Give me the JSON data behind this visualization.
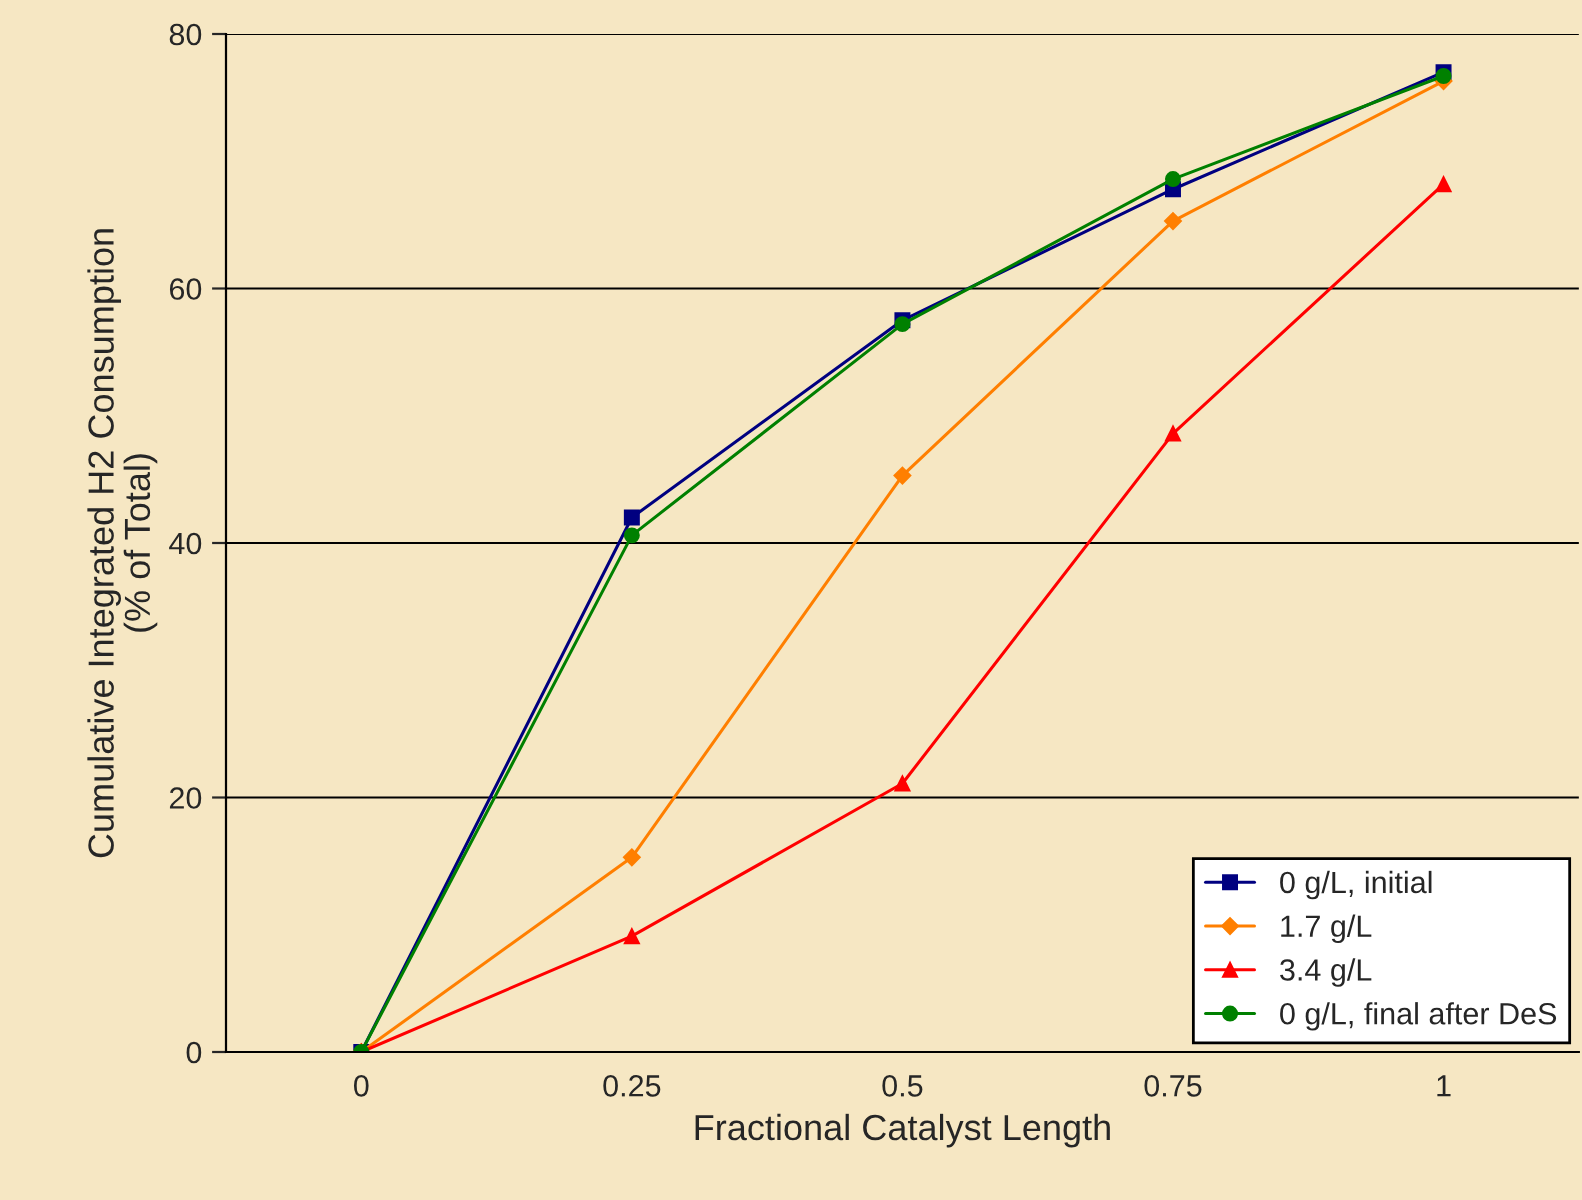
{
  "chart_data": {
    "type": "line",
    "xlabel": "Fractional Catalyst Length",
    "ylabel": "Cumulative Integrated H2 Consumption\n(% of Total)",
    "categories": [
      "0",
      "0.25",
      "0.5",
      "0.75",
      "1"
    ],
    "ylim": [
      0,
      80
    ],
    "yticks": [
      0,
      20,
      40,
      60,
      80
    ],
    "grid": "y",
    "legend": "bottom right",
    "series": [
      {
        "name": "0 g/L, initial",
        "color": "#000080",
        "marker": "square",
        "values": [
          0,
          42.0,
          57.5,
          67.8,
          77.0
        ]
      },
      {
        "name": "1.7 g/L",
        "color": "#ff7f00",
        "marker": "diamond",
        "values": [
          0,
          15.3,
          45.3,
          65.3,
          76.3
        ]
      },
      {
        "name": "3.4 g/L",
        "color": "#ff0000",
        "marker": "triangle",
        "values": [
          0,
          9.1,
          21.1,
          48.6,
          68.2
        ]
      },
      {
        "name": "0 g/L, final after DeS",
        "color": "#008000",
        "marker": "circle",
        "values": [
          0,
          40.6,
          57.2,
          68.6,
          76.7
        ]
      }
    ]
  }
}
